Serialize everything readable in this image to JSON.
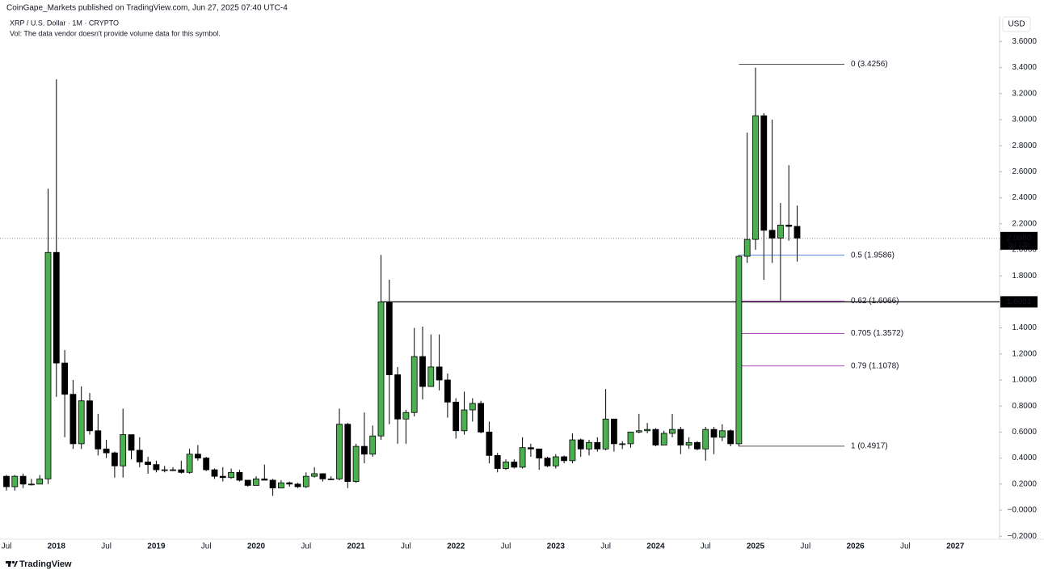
{
  "header": {
    "published": "CoinGape_Markets published on TradingView.com, Jun 27, 2025 07:40 UTC-4"
  },
  "chart_data": {
    "type": "candlestick",
    "title": "XRP / U.S. Dollar · 1M · CRYPTO",
    "subtitle": "Vol: The data vendor doesn't provide volume data for this symbol.",
    "currency": "USD",
    "categories": [
      "Jul",
      null,
      null,
      null,
      null,
      null,
      "2018",
      null,
      null,
      null,
      null,
      null,
      "Jul",
      null,
      null,
      null,
      null,
      null,
      "2019",
      null,
      null,
      null,
      null,
      null,
      "Jul",
      null,
      null,
      null,
      null,
      null,
      "2020",
      null,
      null,
      null,
      null,
      null,
      "Jul",
      null,
      null,
      null,
      null,
      null,
      "2021",
      null,
      null,
      null,
      null,
      null,
      "Jul",
      null,
      null,
      null,
      null,
      null,
      "2022",
      null,
      null,
      null,
      null,
      null,
      "Jul",
      null,
      null,
      null,
      null,
      null,
      "2023",
      null,
      null,
      null,
      null,
      null,
      "Jul",
      null,
      null,
      null,
      null,
      null,
      "2024",
      null,
      null,
      null,
      null,
      null,
      "Jul",
      null,
      null,
      null,
      null,
      null,
      "2025",
      null,
      null,
      null,
      null,
      null,
      "Jul",
      null,
      null,
      null,
      null,
      null,
      "2026",
      null,
      null,
      null,
      null,
      null,
      "Jul",
      null,
      null,
      null,
      null,
      null,
      "2027"
    ],
    "open": [
      0.26,
      0.18,
      0.26,
      0.2,
      0.2,
      0.24,
      1.98,
      1.13,
      0.89,
      0.51,
      0.84,
      0.61,
      0.47,
      0.44,
      0.34,
      0.58,
      0.46,
      0.37,
      0.35,
      0.31,
      0.31,
      0.31,
      0.29,
      0.43,
      0.4,
      0.31,
      0.26,
      0.25,
      0.29,
      0.23,
      0.19,
      0.24,
      0.23,
      0.17,
      0.21,
      0.2,
      0.18,
      0.26,
      0.28,
      0.24,
      0.24,
      0.66,
      0.22,
      0.49,
      0.43,
      0.57,
      1.6,
      1.04,
      0.7,
      0.75,
      1.18,
      0.95,
      1.1,
      1.0,
      0.83,
      0.61,
      0.77,
      0.82,
      0.6,
      0.42,
      0.32,
      0.37,
      0.33,
      0.48,
      0.47,
      0.4,
      0.34,
      0.41,
      0.38,
      0.54,
      0.47,
      0.52,
      0.47,
      0.7,
      0.51,
      0.51,
      0.6,
      0.61,
      0.62,
      0.5,
      0.59,
      0.62,
      0.5,
      0.52,
      0.47,
      0.62,
      0.56,
      0.61,
      0.51,
      1.95,
      2.08,
      3.03,
      2.15,
      2.09,
      2.19,
      2.18,
      null,
      null,
      null,
      null,
      null,
      null,
      null,
      null,
      null,
      null,
      null,
      null,
      null,
      null,
      null,
      null,
      null,
      null,
      null
    ],
    "high": [
      0.27,
      0.27,
      0.28,
      0.24,
      0.27,
      2.47,
      3.31,
      1.23,
      1.0,
      0.95,
      0.9,
      0.74,
      0.54,
      0.45,
      0.78,
      0.58,
      0.56,
      0.41,
      0.38,
      0.34,
      0.33,
      0.38,
      0.47,
      0.5,
      0.41,
      0.32,
      0.33,
      0.32,
      0.31,
      0.23,
      0.26,
      0.35,
      0.24,
      0.23,
      0.22,
      0.21,
      0.29,
      0.33,
      0.28,
      0.26,
      0.78,
      0.67,
      0.51,
      0.75,
      0.65,
      1.96,
      1.77,
      1.1,
      0.77,
      1.4,
      1.41,
      1.35,
      1.35,
      1.05,
      0.86,
      0.91,
      0.86,
      0.84,
      0.68,
      0.44,
      0.39,
      0.39,
      0.56,
      0.51,
      0.47,
      0.41,
      0.43,
      0.42,
      0.59,
      0.55,
      0.54,
      0.56,
      0.93,
      0.7,
      0.53,
      0.6,
      0.74,
      0.67,
      0.63,
      0.61,
      0.74,
      0.64,
      0.56,
      0.53,
      0.64,
      0.64,
      0.66,
      0.62,
      1.96,
      2.9,
      3.4,
      3.05,
      3.0,
      2.36,
      2.65,
      2.34,
      null,
      null,
      null,
      null,
      null,
      null,
      null,
      null,
      null,
      null,
      null,
      null,
      null,
      null,
      null,
      null,
      null,
      null,
      null
    ],
    "low": [
      0.15,
      0.15,
      0.17,
      0.19,
      0.2,
      0.2,
      0.87,
      0.56,
      0.47,
      0.47,
      0.58,
      0.42,
      0.4,
      0.25,
      0.25,
      0.39,
      0.33,
      0.28,
      0.29,
      0.29,
      0.3,
      0.28,
      0.28,
      0.38,
      0.3,
      0.24,
      0.22,
      0.24,
      0.22,
      0.18,
      0.19,
      0.23,
      0.11,
      0.17,
      0.18,
      0.17,
      0.17,
      0.25,
      0.22,
      0.23,
      0.23,
      0.17,
      0.21,
      0.36,
      0.41,
      0.54,
      0.66,
      0.51,
      0.51,
      0.72,
      0.85,
      0.95,
      0.92,
      0.71,
      0.55,
      0.58,
      0.68,
      0.59,
      0.36,
      0.29,
      0.31,
      0.32,
      0.32,
      0.41,
      0.31,
      0.33,
      0.32,
      0.36,
      0.36,
      0.41,
      0.42,
      0.45,
      0.46,
      0.45,
      0.47,
      0.48,
      0.59,
      0.59,
      0.49,
      0.5,
      0.56,
      0.43,
      0.47,
      0.46,
      0.38,
      0.43,
      0.53,
      0.49,
      0.49,
      1.9,
      2.0,
      1.77,
      1.9,
      1.61,
      2.07,
      1.91,
      null,
      null,
      null,
      null,
      null,
      null,
      null,
      null,
      null,
      null,
      null,
      null,
      null,
      null,
      null,
      null,
      null,
      null,
      null
    ],
    "close": [
      0.18,
      0.26,
      0.2,
      0.2,
      0.24,
      1.98,
      1.13,
      0.89,
      0.51,
      0.84,
      0.61,
      0.47,
      0.44,
      0.34,
      0.58,
      0.46,
      0.37,
      0.35,
      0.31,
      0.31,
      0.31,
      0.29,
      0.43,
      0.4,
      0.31,
      0.26,
      0.25,
      0.29,
      0.23,
      0.19,
      0.24,
      0.23,
      0.17,
      0.21,
      0.2,
      0.18,
      0.26,
      0.28,
      0.24,
      0.24,
      0.66,
      0.22,
      0.49,
      0.43,
      0.57,
      1.6,
      1.04,
      0.7,
      0.75,
      1.18,
      0.95,
      1.1,
      1.0,
      0.83,
      0.61,
      0.77,
      0.82,
      0.6,
      0.42,
      0.32,
      0.37,
      0.33,
      0.48,
      0.47,
      0.4,
      0.34,
      0.41,
      0.38,
      0.54,
      0.47,
      0.52,
      0.47,
      0.7,
      0.51,
      0.51,
      0.6,
      0.61,
      0.62,
      0.5,
      0.59,
      0.62,
      0.5,
      0.52,
      0.47,
      0.62,
      0.56,
      0.61,
      0.51,
      1.95,
      2.08,
      3.03,
      2.15,
      2.09,
      2.19,
      2.18,
      2.09,
      null,
      null,
      null,
      null,
      null,
      null,
      null,
      null,
      null,
      null,
      null,
      null,
      null,
      null,
      null,
      null,
      null,
      null,
      null
    ],
    "up_color": "#4caf50",
    "down_color": "#000000",
    "ylim": [
      -0.2236,
      3.795
    ],
    "yticks": [
      {
        "value": -0.2,
        "label": "−0.2000"
      },
      {
        "value": 0,
        "label": "−0.0000"
      },
      {
        "value": 0.2,
        "label": "0.2000"
      },
      {
        "value": 0.4,
        "label": "0.4000"
      },
      {
        "value": 0.6,
        "label": "0.6000"
      },
      {
        "value": 0.8,
        "label": "0.8000"
      },
      {
        "value": 1,
        "label": "1.0000"
      },
      {
        "value": 1.2,
        "label": "1.2000"
      },
      {
        "value": 1.4,
        "label": "1.4000"
      },
      {
        "value": 1.6,
        "label": "1.6000"
      },
      {
        "value": 1.8,
        "label": "1.8000"
      },
      {
        "value": 2,
        "label": "2.0000"
      },
      {
        "value": 2.2,
        "label": "2.2000"
      },
      {
        "value": 2.4,
        "label": "2.4000"
      },
      {
        "value": 2.6,
        "label": "2.6000"
      },
      {
        "value": 2.8,
        "label": "2.8000"
      },
      {
        "value": 3,
        "label": "3.0000"
      },
      {
        "value": 3.2,
        "label": "3.2000"
      },
      {
        "value": 3.4,
        "label": "3.4000"
      },
      {
        "value": 3.6,
        "label": "3.6000"
      }
    ],
    "fib_levels": [
      {
        "value": 3.4256,
        "label": "0 (3.4256)",
        "color": "#555555"
      },
      {
        "value": 1.9586,
        "label": "0.5 (1.9586)",
        "color": "#5b7fd6"
      },
      {
        "value": 1.6066,
        "label": "0.62 (1.6066)",
        "color": "#b04cc0"
      },
      {
        "value": 1.3572,
        "label": "0.705 (1.3572)",
        "color": "#b04cc0"
      },
      {
        "value": 1.1078,
        "label": "0.79 (1.1078)",
        "color": "#b04cc0"
      },
      {
        "value": 0.4917,
        "label": "1 (0.4917)",
        "color": "#555555"
      }
    ],
    "horizontal_line": {
      "value": 1.6001,
      "label": "1.6001"
    },
    "last_price": {
      "value": 2.088,
      "label": "2.0880",
      "countdown": "3d 13h"
    }
  },
  "footer": {
    "brand": "TradingView"
  }
}
